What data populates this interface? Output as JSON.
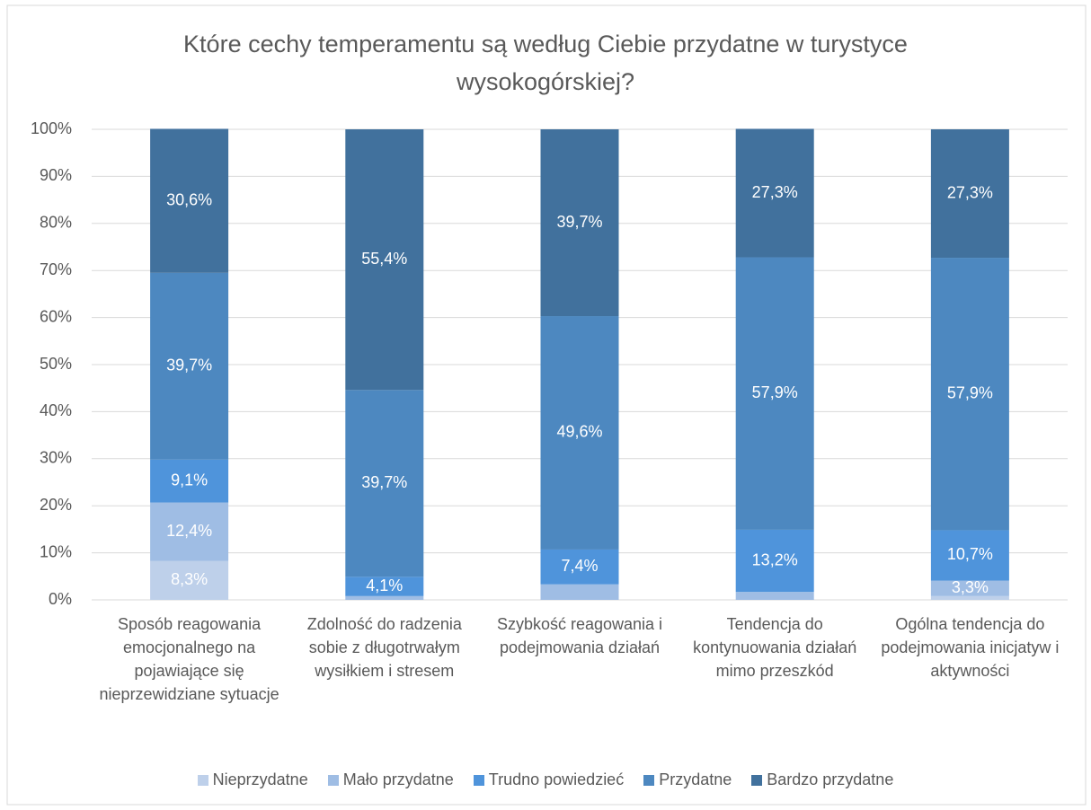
{
  "chart_data": {
    "type": "stacked_bar",
    "title": "Które cechy temperamentu są według Ciebie przydatne w turystyce wysokogórskiej?",
    "categories": [
      "Sposób reagowania emocjonalnego na pojawiające się nieprzewidziane sytuacje",
      "Zdolność do radzenia sobie z długotrwałym wysiłkiem i stresem",
      "Szybkość reagowania i podejmowania działań",
      "Tendencja do kontynuowania działań mimo przeszkód",
      "Ogólna tendencja do podejmowania inicjatyw i aktywności"
    ],
    "series": [
      {
        "name": "Nieprzydatne",
        "color": "#bed0ea",
        "values": [
          8.3,
          0,
          0,
          0,
          0.8
        ],
        "value_labels": [
          "8,3%",
          null,
          null,
          null,
          null
        ]
      },
      {
        "name": "Mało przydatne",
        "color": "#9fbde4",
        "values": [
          12.4,
          0.8,
          3.3,
          1.7,
          3.3
        ],
        "value_labels": [
          "12,4%",
          null,
          null,
          null,
          "3,3%"
        ]
      },
      {
        "name": "Trudno powiedzieć",
        "color": "#4f94db",
        "values": [
          9.1,
          4.1,
          7.4,
          13.2,
          10.7
        ],
        "value_labels": [
          "9,1%",
          "4,1%",
          "7,4%",
          "13,2%",
          "10,7%"
        ]
      },
      {
        "name": "Przydatne",
        "color": "#4d88c0",
        "values": [
          39.7,
          39.7,
          49.6,
          57.9,
          57.9
        ],
        "value_labels": [
          "39,7%",
          "39,7%",
          "49,6%",
          "57,9%",
          "57,9%"
        ]
      },
      {
        "name": "Bardzo przydatne",
        "color": "#41719d",
        "values": [
          30.6,
          55.4,
          39.7,
          27.3,
          27.3
        ],
        "value_labels": [
          "30,6%",
          "55,4%",
          "39,7%",
          "27,3%",
          "27,3%"
        ]
      }
    ],
    "ylim": [
      0,
      100
    ],
    "yticks": [
      {
        "value": 0,
        "label": "0%"
      },
      {
        "value": 10,
        "label": "10%"
      },
      {
        "value": 20,
        "label": "20%"
      },
      {
        "value": 30,
        "label": "30%"
      },
      {
        "value": 40,
        "label": "40%"
      },
      {
        "value": 50,
        "label": "50%"
      },
      {
        "value": 60,
        "label": "60%"
      },
      {
        "value": 70,
        "label": "70%"
      },
      {
        "value": 80,
        "label": "80%"
      },
      {
        "value": 90,
        "label": "90%"
      },
      {
        "value": 100,
        "label": "100%"
      }
    ],
    "grid": true,
    "legend": "bottom"
  }
}
